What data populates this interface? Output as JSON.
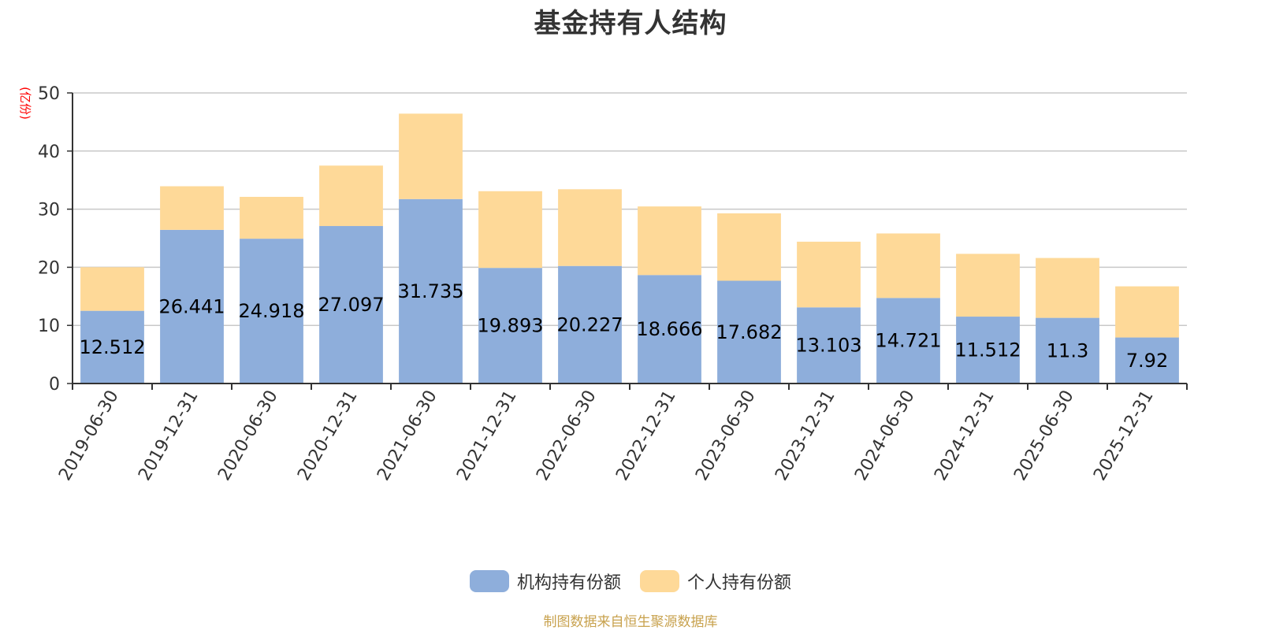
{
  "title": "基金持有人结构",
  "source_note": "制图数据来自恒生聚源数据库",
  "chart_data": {
    "type": "bar",
    "stacked": true,
    "title": "基金持有人结构",
    "ylabel": "(亿份)",
    "ylim": [
      0,
      50
    ],
    "yticks": [
      0,
      10,
      20,
      30,
      40,
      50
    ],
    "grid": true,
    "legend_position": "bottom",
    "categories": [
      "2019-06-30",
      "2019-12-31",
      "2020-06-30",
      "2020-12-31",
      "2021-06-30",
      "2021-12-31",
      "2022-06-30",
      "2022-12-31",
      "2023-06-30",
      "2023-12-31",
      "2024-06-30",
      "2024-12-31",
      "2025-06-30",
      "2025-12-31"
    ],
    "series": [
      {
        "name": "机构持有份额",
        "color": "#8eaedb",
        "values": [
          12.512,
          26.441,
          24.918,
          27.097,
          31.735,
          19.893,
          20.227,
          18.666,
          17.682,
          13.103,
          14.721,
          11.512,
          11.3,
          7.92
        ],
        "labels": [
          "12.512",
          "26.441",
          "24.918",
          "27.097",
          "31.735",
          "19.893",
          "20.227",
          "18.666",
          "17.682",
          "13.103",
          "14.721",
          "11.512",
          "11.3",
          "7.92"
        ]
      },
      {
        "name": "个人持有份额",
        "color": "#fed998",
        "values": [
          7.5,
          7.5,
          7.2,
          10.4,
          14.7,
          13.2,
          13.2,
          11.8,
          11.6,
          11.3,
          11.1,
          10.8,
          10.3,
          8.8
        ]
      }
    ]
  }
}
